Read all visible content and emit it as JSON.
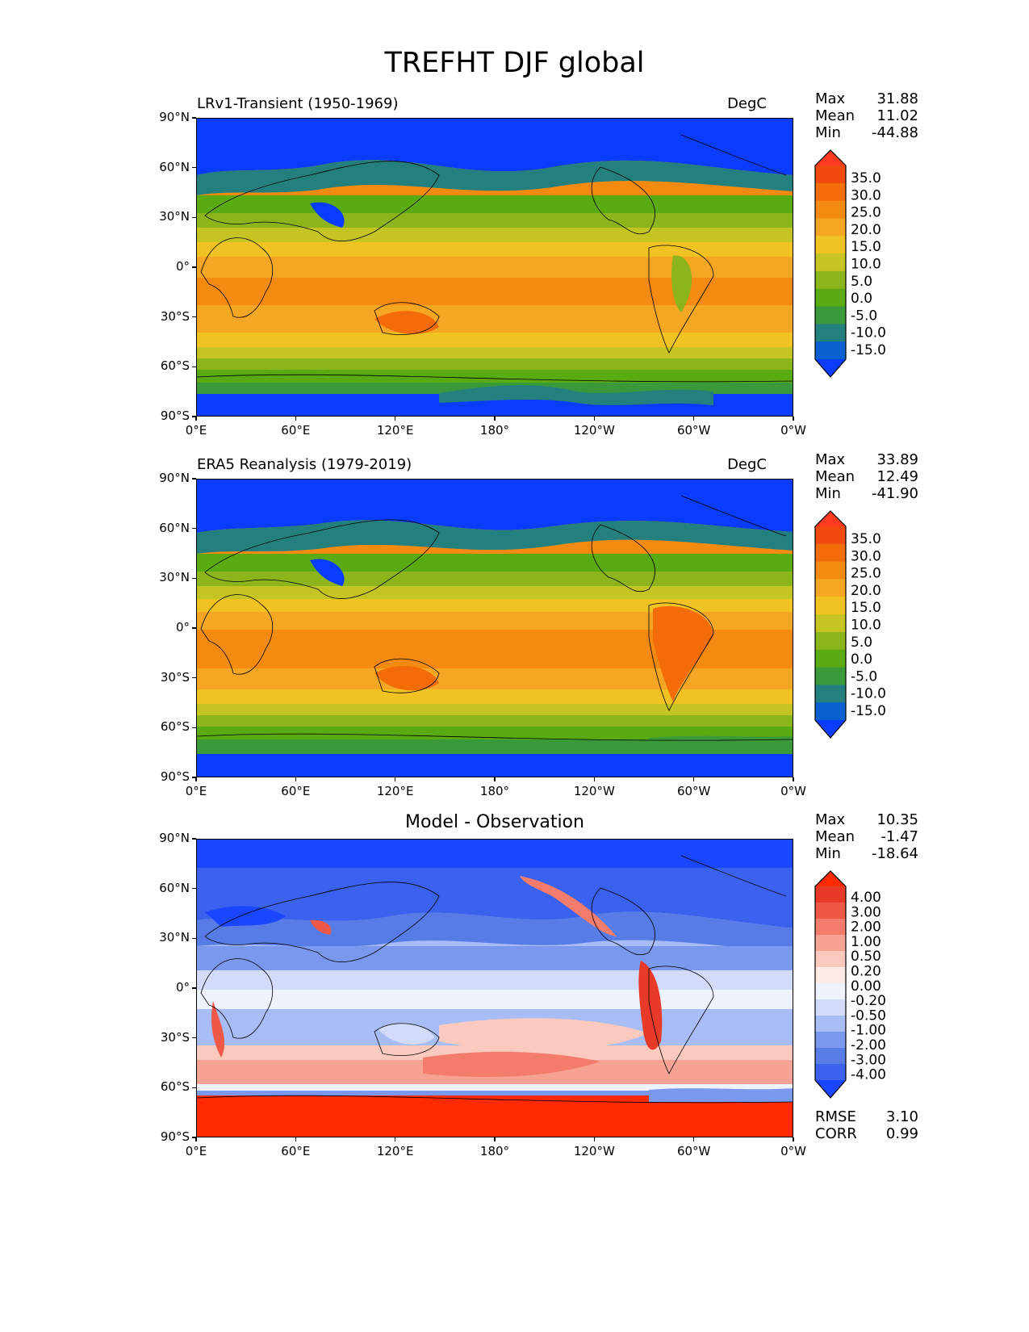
{
  "title": "TREFHT DJF global",
  "x_ticks": [
    "0°E",
    "60°E",
    "120°E",
    "180°",
    "120°W",
    "60°W",
    "0°W"
  ],
  "y_ticks": [
    "90°N",
    "60°N",
    "30°N",
    "0°",
    "30°S",
    "60°S",
    "90°S"
  ],
  "panels": [
    {
      "title": "LRv1-Transient (1950-1969)",
      "units": "DegC",
      "stats": {
        "max_label": "Max",
        "max": "31.88",
        "mean_label": "Mean",
        "mean": "11.02",
        "min_label": "Min",
        "min": "-44.88"
      },
      "colorbar_labels": [
        "35.0",
        "30.0",
        "25.0",
        "20.0",
        "15.0",
        "10.0",
        "5.0",
        "0.0",
        "-5.0",
        "-10.0",
        "-15.0"
      ]
    },
    {
      "title": "ERA5 Reanalysis (1979-2019)",
      "units": "DegC",
      "stats": {
        "max_label": "Max",
        "max": "33.89",
        "mean_label": "Mean",
        "mean": "12.49",
        "min_label": "Min",
        "min": "-41.90"
      },
      "colorbar_labels": [
        "35.0",
        "30.0",
        "25.0",
        "20.0",
        "15.0",
        "10.0",
        "5.0",
        "0.0",
        "-5.0",
        "-10.0",
        "-15.0"
      ]
    },
    {
      "title": "Model - Observation",
      "stats": {
        "max_label": "Max",
        "max": "10.35",
        "mean_label": "Mean",
        "mean": "-1.47",
        "min_label": "Min",
        "min": "-18.64"
      },
      "colorbar_labels": [
        "4.00",
        "3.00",
        "2.00",
        "1.00",
        "0.50",
        "0.20",
        "0.00",
        "-0.20",
        "-0.50",
        "-1.00",
        "-2.00",
        "-3.00",
        "-4.00"
      ],
      "metrics": {
        "rmse_label": "RMSE",
        "rmse": "3.10",
        "corr_label": "CORR",
        "corr": "0.99"
      }
    }
  ],
  "temp_colors": [
    "#0a3cff",
    "#0a5fd1",
    "#24807e",
    "#3a9a3a",
    "#5aab12",
    "#8cb51c",
    "#c4c423",
    "#f0c323",
    "#f5a723",
    "#f48b10",
    "#f46c08",
    "#f04a10",
    "#ff3a1e"
  ],
  "diff_colors": [
    "#1a46ff",
    "#3a62ee",
    "#587ce6",
    "#7a98ee",
    "#a8bcf5",
    "#d2dcfa",
    "#eef2fd",
    "#fdebe6",
    "#fbc9bd",
    "#f7a394",
    "#f37c6c",
    "#ef5846",
    "#e83a28",
    "#ff2a00"
  ]
}
